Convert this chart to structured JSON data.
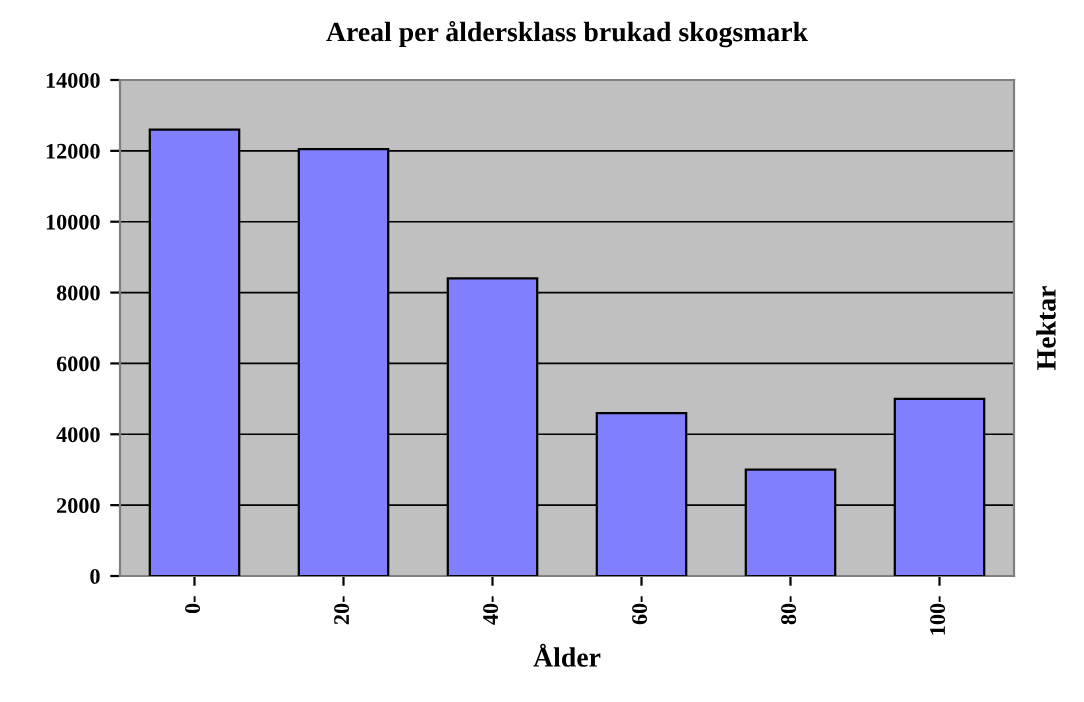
{
  "chart_data": {
    "type": "bar",
    "title": "Areal per åldersklass brukad skogsmark",
    "xlabel": "Ålder",
    "ylabel": "Hektar",
    "categories": [
      "0-",
      "20-",
      "40-",
      "60-",
      "80-",
      "100-"
    ],
    "values": [
      12600,
      12050,
      8400,
      4600,
      3000,
      5000
    ],
    "color": "#8080ff",
    "ylim": [
      0,
      14000
    ],
    "yticks": [
      0,
      2000,
      4000,
      6000,
      8000,
      10000,
      12000,
      14000
    ],
    "grid": "y"
  }
}
